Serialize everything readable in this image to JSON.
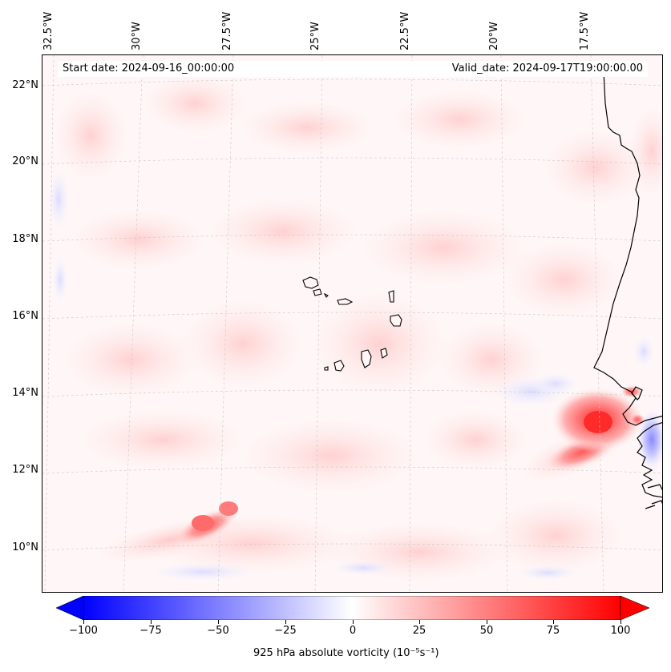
{
  "map": {
    "start_date": "Start date: 2024-09-16_00:00:00",
    "valid_date": "Valid_date: 2024-09-17T19:00:00.00",
    "longitude_labels": [
      "32.5°W",
      "30°W",
      "27.5°W",
      "25°W",
      "22.5°W",
      "20°W",
      "17.5°W"
    ],
    "latitude_labels": [
      "22°N",
      "20°N",
      "18°N",
      "16°N",
      "14°N",
      "12°N",
      "10°N"
    ],
    "variable": "925 hPa absolute vorticity",
    "units": "(10⁻⁵s⁻¹)",
    "features": {
      "vortex_east": {
        "lon": -17.7,
        "lat": 13.3,
        "value": 100
      },
      "vortex_southwest": {
        "lon": -28.0,
        "lat": 10.8,
        "value": 65
      }
    }
  },
  "colorbar": {
    "min": -100,
    "max": 100,
    "tick_labels": [
      "−100",
      "−75",
      "−50",
      "−25",
      "0",
      "25",
      "50",
      "75",
      "100"
    ],
    "low_color": "#0000ff",
    "mid_color": "#ffffff",
    "high_color": "#ff0000",
    "label": "925 hPa absolute vorticity (10⁻⁵s⁻¹)"
  }
}
